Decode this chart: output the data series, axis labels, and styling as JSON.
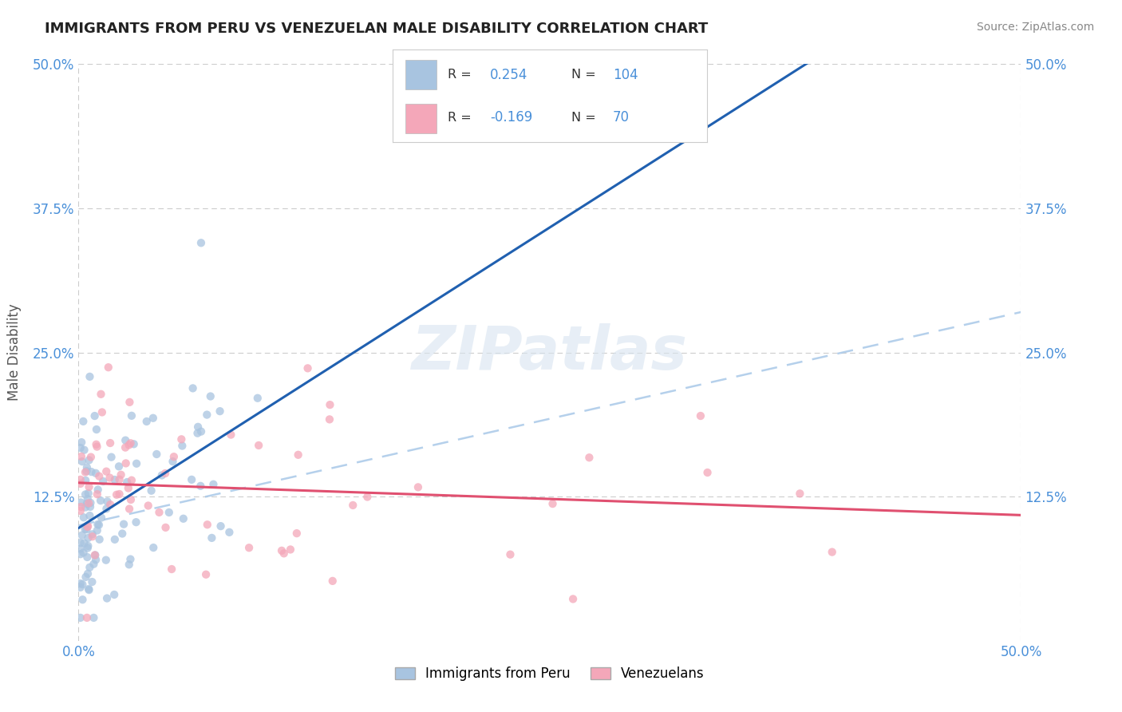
{
  "title": "IMMIGRANTS FROM PERU VS VENEZUELAN MALE DISABILITY CORRELATION CHART",
  "source": "Source: ZipAtlas.com",
  "ylabel": "Male Disability",
  "xlim": [
    0.0,
    0.5
  ],
  "ylim": [
    0.0,
    0.5
  ],
  "grid_color": "#cccccc",
  "background_color": "#ffffff",
  "peru_color": "#a8c4e0",
  "venezuela_color": "#f4a7b9",
  "peru_R": 0.254,
  "peru_N": 104,
  "venezuela_R": -0.169,
  "venezuela_N": 70,
  "peru_line_color": "#2060b0",
  "venezuela_line_color": "#e05070",
  "trend_line_color": "#a8c8e8",
  "watermark": "ZIPatlas",
  "legend_peru_label": "Immigrants from Peru",
  "legend_venezuela_label": "Venezuelans",
  "title_color": "#222222",
  "source_color": "#888888",
  "tick_color": "#4a90d9",
  "ylabel_color": "#555555"
}
